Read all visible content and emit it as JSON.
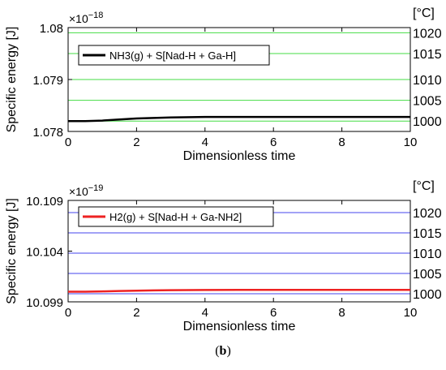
{
  "caption": {
    "open": "(",
    "label": "b",
    "close": ")"
  },
  "chart_data": [
    {
      "type": "line",
      "xlabel": "Dimensionless time",
      "ylabel": "Specific energy [J]",
      "y_exponent": "×10",
      "y_exponent_power": "−18",
      "right_axis_unit": "[°C]",
      "xlim": [
        0,
        10
      ],
      "ylim": [
        1.078,
        1.08
      ],
      "x_ticks": [
        "0",
        "2",
        "4",
        "6",
        "8",
        "10"
      ],
      "y_ticks": [
        "1.078",
        "1.079",
        "1.08"
      ],
      "temperature_lines": [
        {
          "label": "1000",
          "y": 1.0782
        },
        {
          "label": "1005",
          "y": 1.0786
        },
        {
          "label": "1010",
          "y": 1.079
        },
        {
          "label": "1015",
          "y": 1.0795
        },
        {
          "label": "1020",
          "y": 1.0799
        }
      ],
      "temperature_line_color": "#44dd44",
      "series": [
        {
          "name": "NH3(g) + S[Nad-H + Ga-H]",
          "color": "#000000",
          "x": [
            0,
            0.5,
            1,
            1.5,
            2,
            2.5,
            3,
            4,
            5,
            6,
            7,
            8,
            9,
            10
          ],
          "y": [
            1.0782,
            1.0782,
            1.07821,
            1.07823,
            1.07825,
            1.07826,
            1.07827,
            1.07828,
            1.07828,
            1.07828,
            1.07828,
            1.07828,
            1.07828,
            1.07828
          ]
        }
      ],
      "grid": false,
      "legend": "top-left"
    },
    {
      "type": "line",
      "xlabel": "Dimensionless time",
      "ylabel": "Specific energy [J]",
      "y_exponent": "×10",
      "y_exponent_power": "−19",
      "right_axis_unit": "[°C]",
      "xlim": [
        0,
        10
      ],
      "ylim": [
        10.099,
        10.109
      ],
      "x_ticks": [
        "0",
        "2",
        "4",
        "6",
        "8",
        "10"
      ],
      "y_ticks": [
        "10.099",
        "10.104",
        "10.109"
      ],
      "temperature_lines": [
        {
          "label": "1000",
          "y": 10.0998
        },
        {
          "label": "1005",
          "y": 10.1018
        },
        {
          "label": "1010",
          "y": 10.1038
        },
        {
          "label": "1015",
          "y": 10.1058
        },
        {
          "label": "1020",
          "y": 10.1078
        }
      ],
      "temperature_line_color": "#4444ee",
      "series": [
        {
          "name": "H2(g) + S[Nad-H + Ga-NH2]",
          "color": "#ee2222",
          "x": [
            0,
            0.5,
            1,
            1.5,
            2,
            2.5,
            3,
            4,
            5,
            6,
            7,
            8,
            9,
            10
          ],
          "y": [
            10.1,
            10.1,
            10.10003,
            10.10007,
            10.1001,
            10.10013,
            10.10015,
            10.10017,
            10.10018,
            10.10018,
            10.10018,
            10.10018,
            10.10018,
            10.10018
          ]
        }
      ],
      "grid": false,
      "legend": "top-left"
    }
  ]
}
